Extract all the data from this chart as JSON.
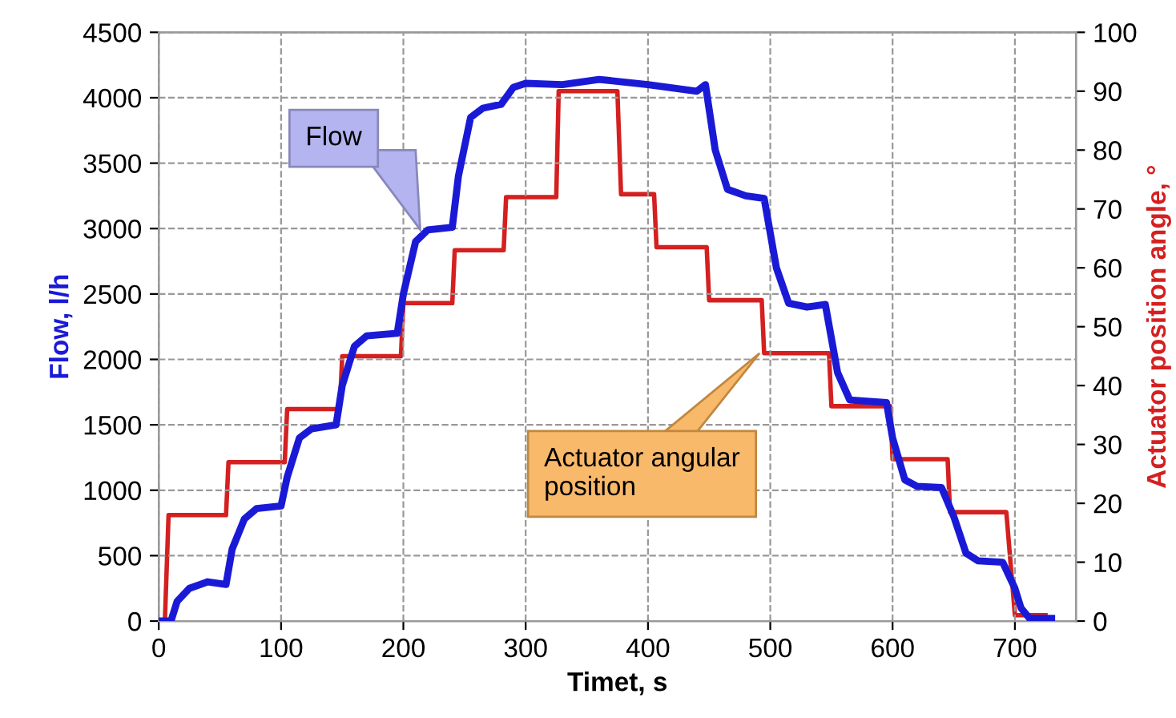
{
  "chart_data": {
    "type": "line",
    "xlabel": "Timet, s",
    "ylabel": "Flow, l/h",
    "y2label": "Actuator position angle, °",
    "xlim": [
      0,
      750
    ],
    "xticks": [
      0,
      100,
      200,
      300,
      400,
      500,
      600,
      700
    ],
    "ylim": [
      0,
      4500
    ],
    "yticks": [
      0,
      500,
      1000,
      1500,
      2000,
      2500,
      3000,
      3500,
      4000,
      4500
    ],
    "y2lim": [
      0,
      100
    ],
    "y2ticks": [
      0,
      10,
      20,
      30,
      40,
      50,
      60,
      70,
      80,
      90,
      100
    ],
    "grid": true,
    "series": [
      {
        "color": "#1a1ad6",
        "x": [
          0,
          10,
          15,
          25,
          40,
          55,
          60,
          70,
          80,
          100,
          105,
          115,
          125,
          145,
          150,
          160,
          170,
          195,
          200,
          210,
          220,
          240,
          245,
          255,
          265,
          280,
          290,
          300,
          330,
          360,
          400,
          440,
          447,
          455,
          465,
          480,
          495,
          505,
          515,
          530,
          545,
          555,
          565,
          595,
          600,
          610,
          620,
          640,
          650,
          660,
          670,
          690,
          700,
          705,
          712,
          730
        ],
        "values": [
          0,
          0,
          150,
          250,
          300,
          280,
          550,
          780,
          860,
          880,
          1100,
          1400,
          1470,
          1500,
          1800,
          2100,
          2180,
          2200,
          2500,
          2900,
          2990,
          3010,
          3400,
          3850,
          3920,
          3950,
          4080,
          4110,
          4100,
          4140,
          4100,
          4050,
          4100,
          3600,
          3300,
          3250,
          3230,
          2700,
          2430,
          2400,
          2420,
          1900,
          1690,
          1670,
          1400,
          1080,
          1030,
          1020,
          800,
          520,
          460,
          450,
          250,
          100,
          20,
          20
        ]
      },
      {
        "color": "#d42020",
        "axis": "y2",
        "x": [
          0,
          5,
          8,
          55,
          57,
          103,
          105,
          148,
          150,
          198,
          200,
          240,
          242,
          282,
          284,
          325,
          327,
          375,
          378,
          405,
          407,
          448,
          450,
          493,
          495,
          548,
          550,
          598,
          600,
          645,
          647,
          693,
          700,
          725
        ],
        "values": [
          0,
          0,
          18,
          18,
          27,
          27,
          36,
          36,
          45,
          45,
          54,
          54,
          63,
          63,
          72,
          72,
          90,
          90,
          72.5,
          72.5,
          63.5,
          63.5,
          54.5,
          54.5,
          45.5,
          45.5,
          36.5,
          36.5,
          27.5,
          27.5,
          18.5,
          18.5,
          1,
          1
        ]
      }
    ],
    "annotations": [
      "Flow",
      "Actuator angular\nposition"
    ]
  }
}
